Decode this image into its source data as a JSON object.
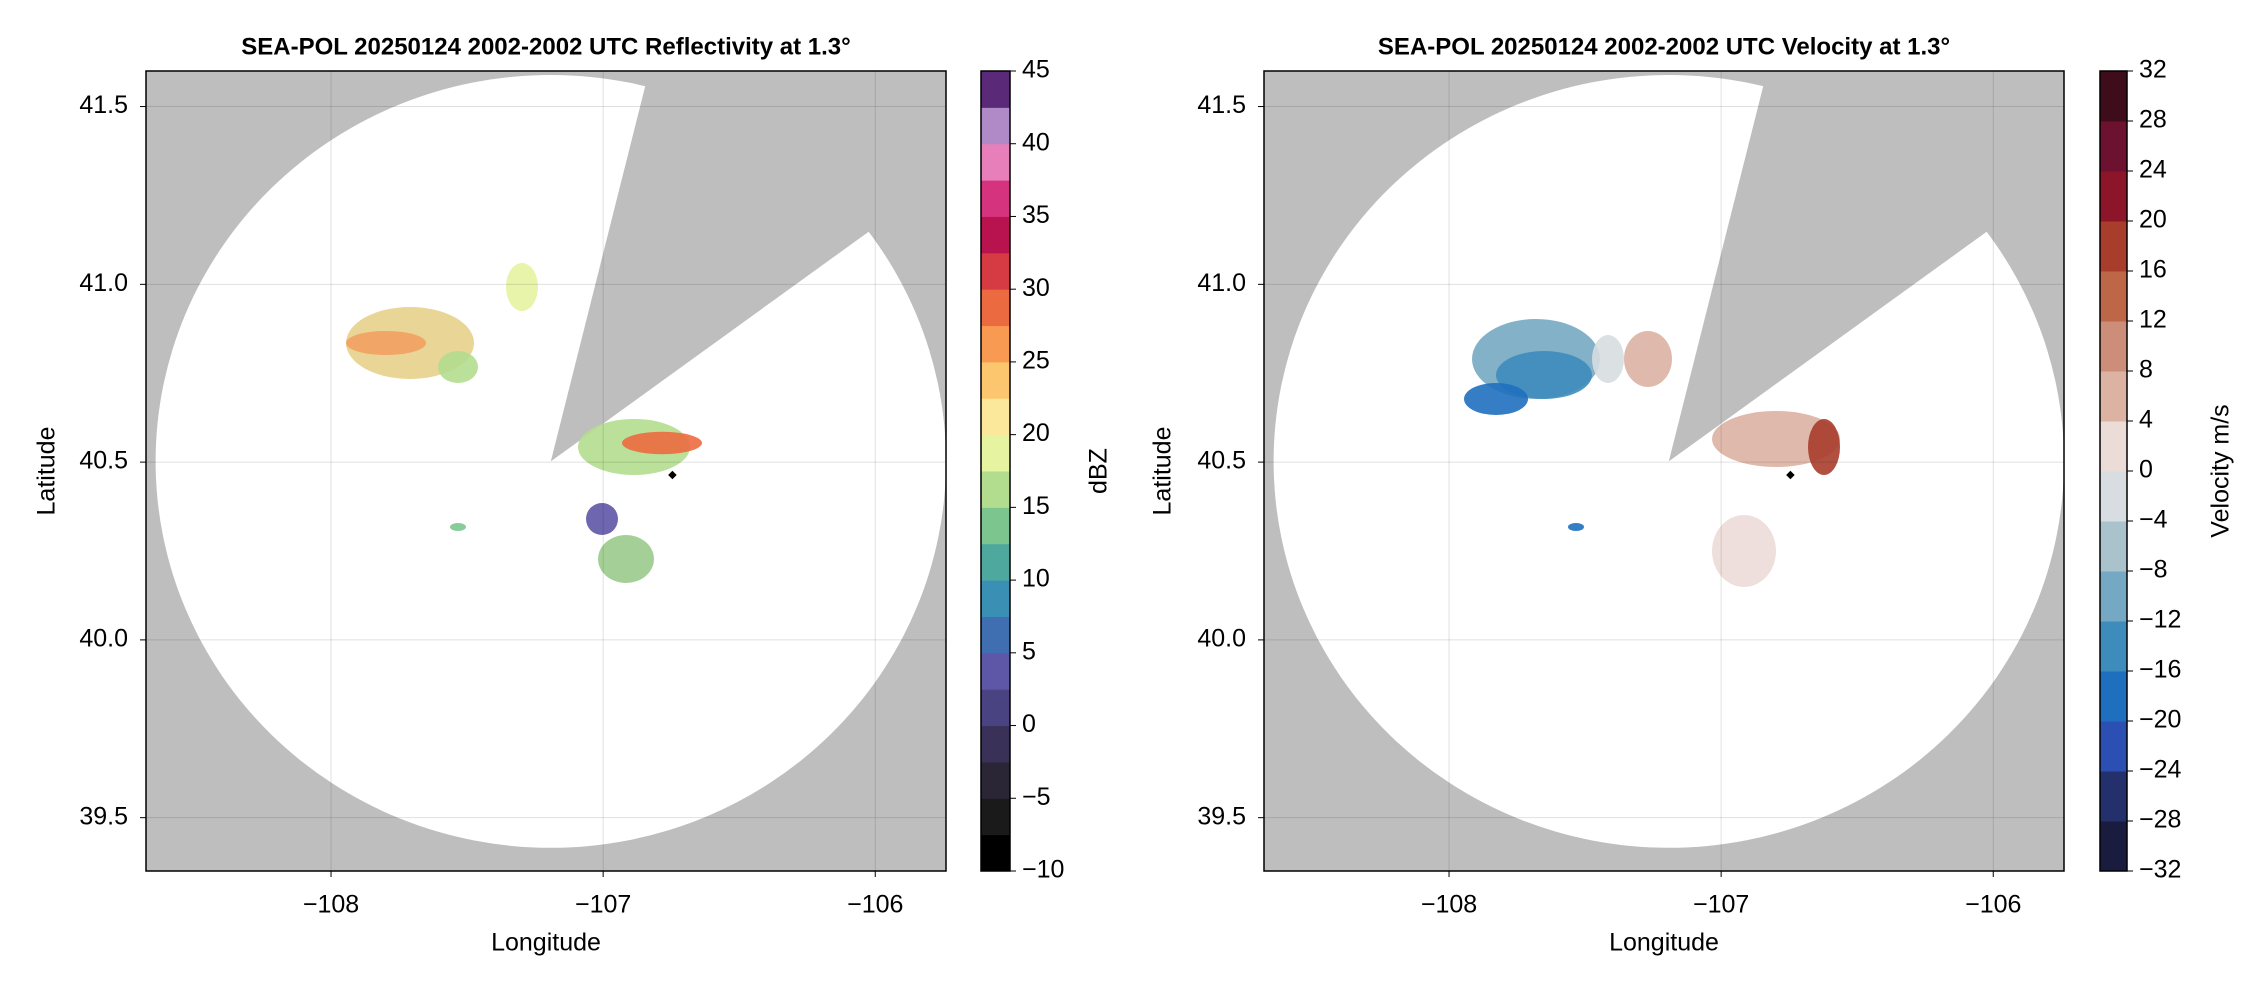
{
  "chart_data": [
    {
      "type": "radar-ppi",
      "title": "SEA-POL 20250124 2002-2002 UTC Reflectivity at 1.3°",
      "xlabel": "Longitude",
      "ylabel": "Latitude",
      "xlim": [
        -108.68,
        -105.74
      ],
      "ylim": [
        39.35,
        41.6
      ],
      "xticks": [
        {
          "value": -108,
          "label": "−108"
        },
        {
          "value": -107,
          "label": "−107"
        },
        {
          "value": -106,
          "label": "−106"
        }
      ],
      "yticks": [
        39.5,
        {
          "value": 40,
          "label": "40.0"
        },
        40.5,
        {
          "value": 41,
          "label": "41.0"
        },
        41.5
      ],
      "grid": true,
      "colorbar": {
        "label": "dBZ",
        "lim": [
          -10,
          45
        ],
        "ticks": [
          {
            "value": -10,
            "label": "−10"
          },
          {
            "value": -5,
            "label": "−5"
          },
          0,
          5,
          10,
          15,
          20,
          25,
          30,
          35,
          40,
          45
        ],
        "colors": [
          "#000000",
          "#1a1a1a",
          "#2b2636",
          "#3a3158",
          "#4a4382",
          "#5e56a6",
          "#3f6fb0",
          "#3a8fb5",
          "#4ea89e",
          "#7cc58e",
          "#b3dd8e",
          "#e6f3a0",
          "#fbe89a",
          "#fcc66e",
          "#f89a51",
          "#ec6a3f",
          "#d63a42",
          "#b8134f",
          "#d6337f",
          "#e77fbb",
          "#b08ac6",
          "#5a2a78"
        ]
      }
    },
    {
      "type": "radar-ppi",
      "title": "SEA-POL 20250124 2002-2002 UTC Velocity at 1.3°",
      "xlabel": "Longitude",
      "ylabel": "Latitude",
      "xlim": [
        -108.68,
        -105.74
      ],
      "ylim": [
        39.35,
        41.6
      ],
      "xticks": [
        {
          "value": -108,
          "label": "−108"
        },
        {
          "value": -107,
          "label": "−107"
        },
        {
          "value": -106,
          "label": "−106"
        }
      ],
      "yticks": [
        39.5,
        {
          "value": 40,
          "label": "40.0"
        },
        40.5,
        {
          "value": 41,
          "label": "41.0"
        },
        41.5
      ],
      "grid": true,
      "colorbar": {
        "label": "Velocity m/s",
        "lim": [
          -32,
          32
        ],
        "ticks": [
          {
            "value": -32,
            "label": "−32"
          },
          {
            "value": -28,
            "label": "−28"
          },
          {
            "value": -24,
            "label": "−24"
          },
          {
            "value": -20,
            "label": "−20"
          },
          {
            "value": -16,
            "label": "−16"
          },
          {
            "value": -12,
            "label": "−12"
          },
          {
            "value": -8,
            "label": "−8"
          },
          {
            "value": -4,
            "label": "−4"
          },
          0,
          4,
          8,
          12,
          16,
          20,
          24,
          28,
          32
        ],
        "colors": [
          "#191c3f",
          "#23306b",
          "#2b4fb3",
          "#1f6fbf",
          "#3e8cbc",
          "#75a8c2",
          "#a9c2cc",
          "#d7dde0",
          "#ecdcd8",
          "#dcb3a3",
          "#cc8e78",
          "#be6748",
          "#a93d2c",
          "#8c1529",
          "#6c1230",
          "#3f0c1c"
        ]
      }
    }
  ]
}
